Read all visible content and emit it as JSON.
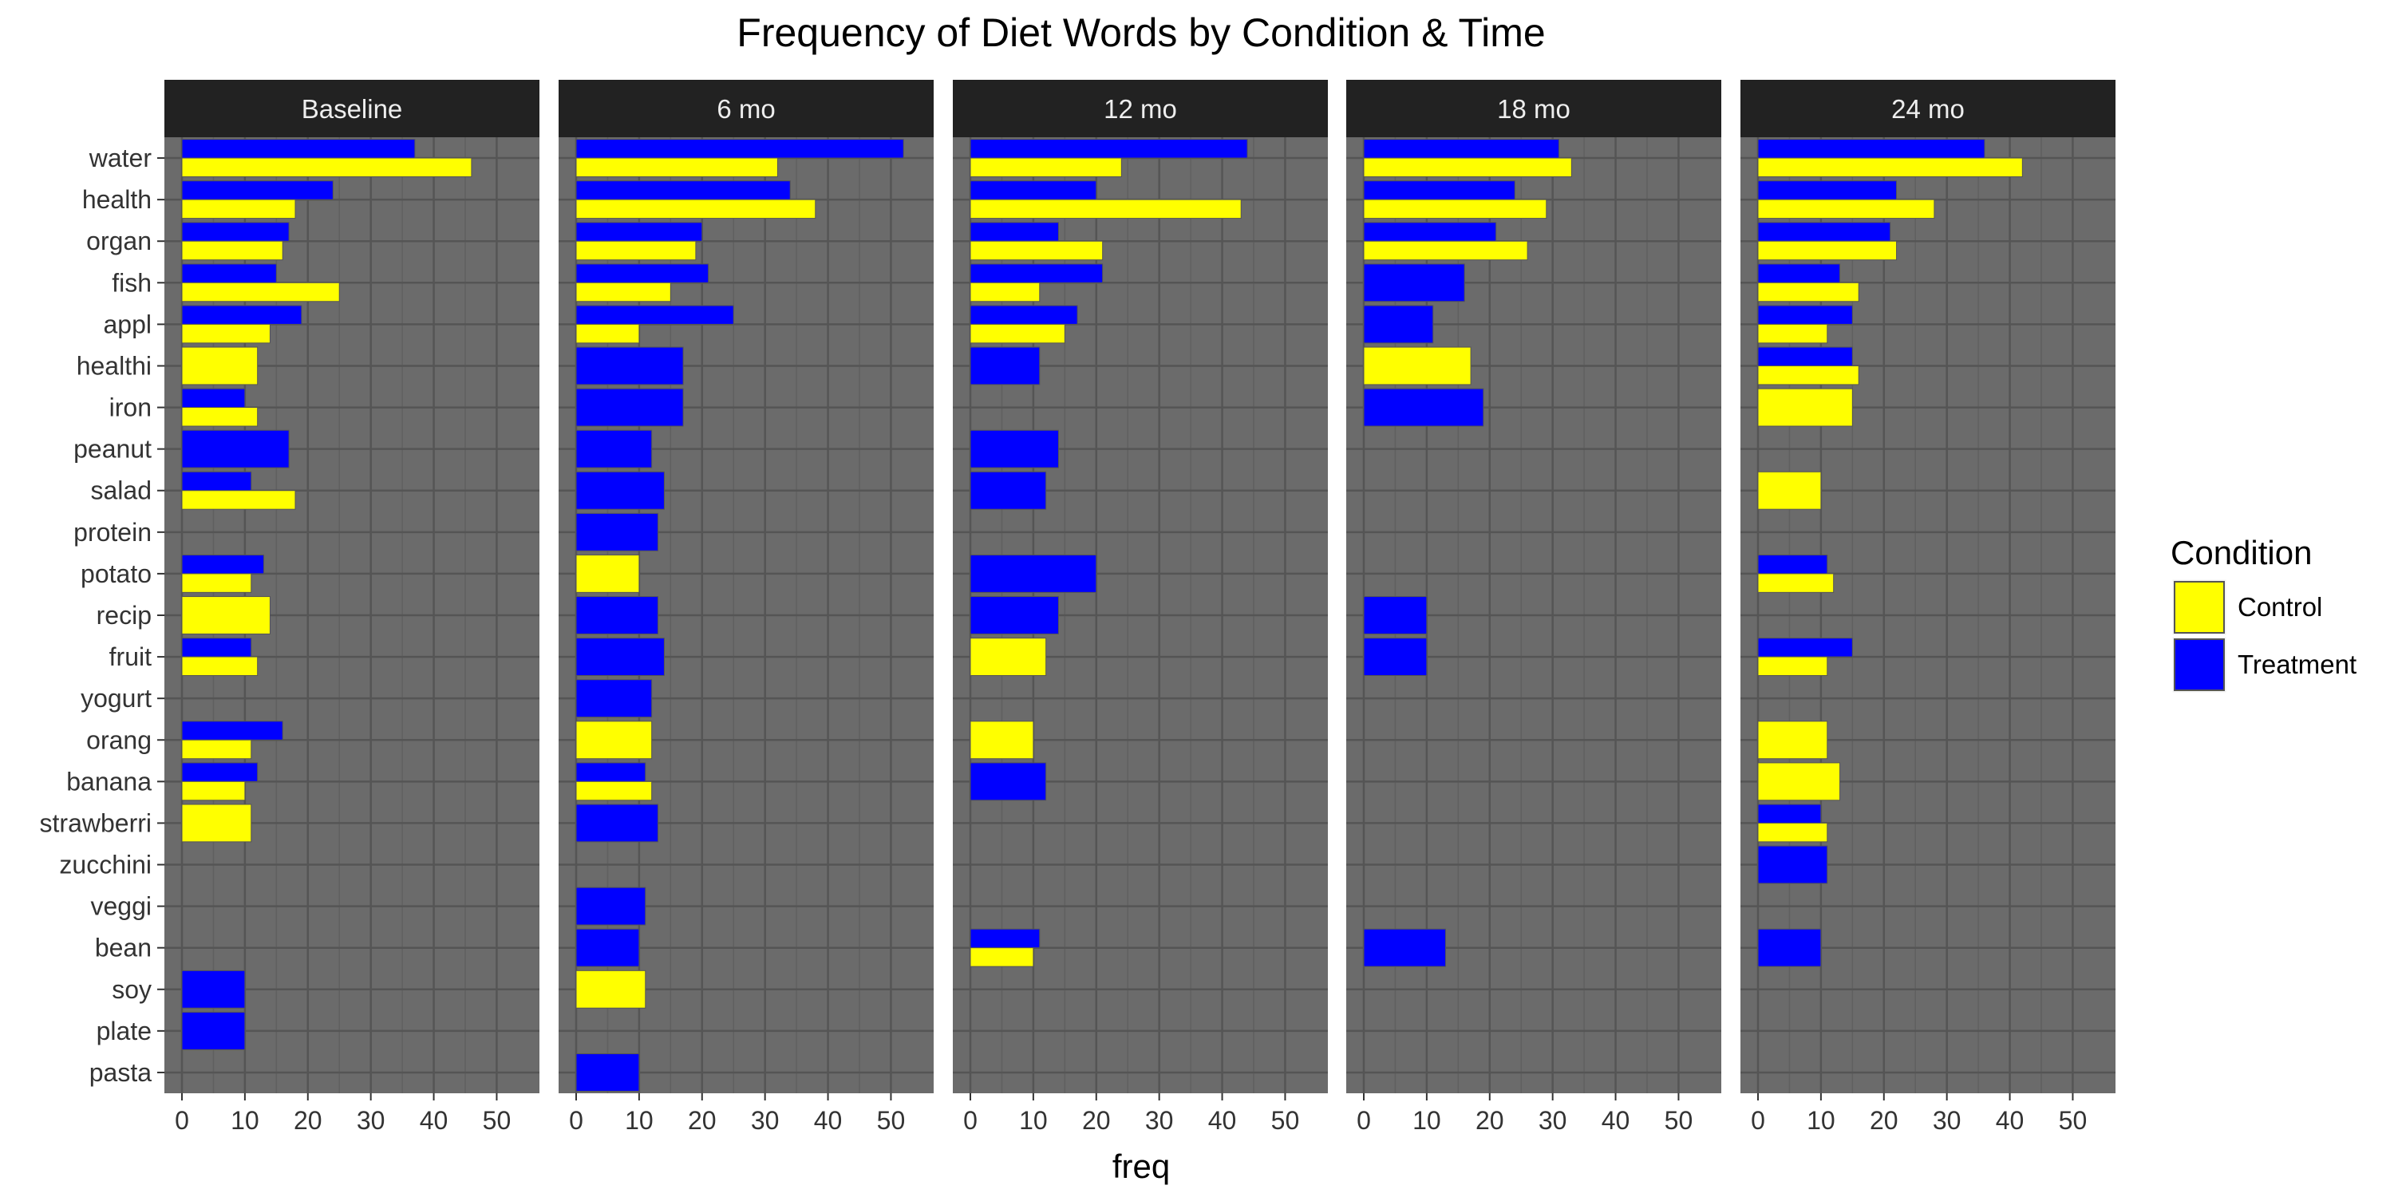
{
  "chart_data": {
    "type": "bar",
    "orientation": "horizontal",
    "title": "Frequency of Diet Words by Condition & Time",
    "xlabel": "freq",
    "ylabel": "",
    "xlim": [
      0,
      54
    ],
    "x_ticks": [
      0,
      10,
      20,
      30,
      40,
      50
    ],
    "grid": true,
    "legend": {
      "title": "Condition",
      "position": "right"
    },
    "categories": [
      "water",
      "health",
      "organ",
      "fish",
      "appl",
      "healthi",
      "iron",
      "peanut",
      "salad",
      "protein",
      "potato",
      "recip",
      "fruit",
      "yogurt",
      "orang",
      "banana",
      "strawberri",
      "zucchini",
      "veggi",
      "bean",
      "soy",
      "plate",
      "pasta"
    ],
    "series": [
      {
        "name": "Control",
        "color": "#ffff00"
      },
      {
        "name": "Treatment",
        "color": "#0000ff"
      }
    ],
    "facets": [
      {
        "label": "Baseline",
        "Control": {
          "water": 46,
          "health": 18,
          "organ": 16,
          "fish": 25,
          "appl": 14,
          "healthi": 12,
          "iron": 12,
          "salad": 18,
          "potato": 11,
          "recip": 14,
          "fruit": 12,
          "orang": 11,
          "banana": 10,
          "strawberri": 11
        },
        "Treatment": {
          "water": 37,
          "health": 24,
          "organ": 17,
          "fish": 15,
          "appl": 19,
          "iron": 10,
          "peanut": 17,
          "salad": 11,
          "potato": 13,
          "fruit": 11,
          "orang": 16,
          "banana": 12,
          "soy": 10,
          "plate": 10
        }
      },
      {
        "label": "6 mo",
        "Control": {
          "water": 32,
          "health": 38,
          "organ": 19,
          "fish": 15,
          "appl": 10,
          "potato": 10,
          "orang": 12,
          "banana": 12,
          "soy": 11
        },
        "Treatment": {
          "water": 52,
          "health": 34,
          "organ": 20,
          "fish": 21,
          "appl": 25,
          "healthi": 17,
          "iron": 17,
          "peanut": 12,
          "salad": 14,
          "protein": 13,
          "recip": 13,
          "fruit": 14,
          "yogurt": 12,
          "banana": 11,
          "strawberri": 13,
          "veggi": 11,
          "bean": 10,
          "pasta": 10
        }
      },
      {
        "label": "12 mo",
        "Control": {
          "water": 24,
          "health": 43,
          "organ": 21,
          "fish": 11,
          "appl": 15,
          "fruit": 12,
          "orang": 10,
          "bean": 10
        },
        "Treatment": {
          "water": 44,
          "health": 20,
          "organ": 14,
          "fish": 21,
          "appl": 17,
          "healthi": 11,
          "peanut": 14,
          "salad": 12,
          "potato": 20,
          "recip": 14,
          "banana": 12,
          "bean": 11
        }
      },
      {
        "label": "18 mo",
        "Control": {
          "water": 33,
          "health": 29,
          "organ": 26,
          "healthi": 17
        },
        "Treatment": {
          "water": 31,
          "health": 24,
          "organ": 21,
          "fish": 16,
          "appl": 11,
          "iron": 19,
          "recip": 10,
          "fruit": 10,
          "bean": 13
        }
      },
      {
        "label": "24 mo",
        "Control": {
          "water": 42,
          "health": 28,
          "organ": 22,
          "fish": 16,
          "appl": 11,
          "healthi": 16,
          "iron": 15,
          "salad": 10,
          "potato": 12,
          "fruit": 11,
          "orang": 11,
          "banana": 13,
          "strawberri": 11
        },
        "Treatment": {
          "water": 36,
          "health": 22,
          "organ": 21,
          "fish": 13,
          "appl": 15,
          "healthi": 15,
          "potato": 11,
          "fruit": 15,
          "strawberri": 10,
          "zucchini": 11,
          "bean": 10
        }
      }
    ]
  }
}
